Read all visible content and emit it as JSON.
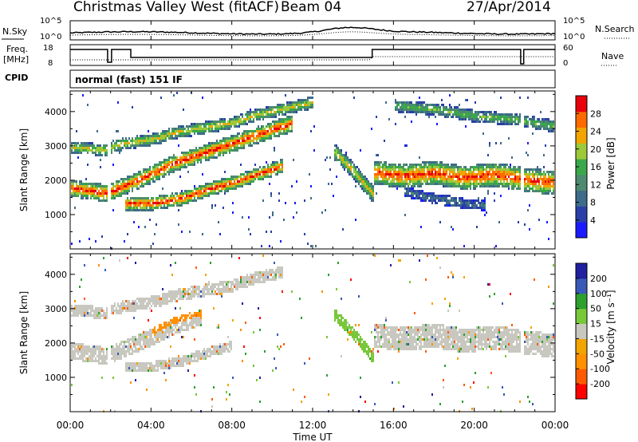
{
  "header": {
    "title": "Christmas Valley West (fitACF)",
    "beam": "Beam 04",
    "date": "27/Apr/2014"
  },
  "top_panels": {
    "nsky_label": "N.Sky",
    "nsearch_label": "N.Search",
    "nsky_ticks": [
      "10^5",
      "10^0"
    ],
    "freq_label_1": "Freq.",
    "freq_label_2": "[MHz]",
    "freq_ticks": [
      "18",
      "8"
    ],
    "nave_label": "Nave",
    "nave_ticks": [
      "60",
      "0"
    ],
    "cpid_label": "CPID",
    "cpid_text": "normal (fast) 151 IF"
  },
  "x_axis": {
    "label": "Time UT",
    "ticks": [
      "00:00",
      "04:00",
      "08:00",
      "12:00",
      "16:00",
      "20:00",
      "00:00"
    ]
  },
  "colors": {
    "power": [
      "#1a1aff",
      "#2a3fa8",
      "#3d6b8a",
      "#4d8a70",
      "#3aa84a",
      "#9cc93a",
      "#f2a400",
      "#ff6a00",
      "#e8000b"
    ],
    "velocity": [
      "#ff0000",
      "#ff5a00",
      "#ff9000",
      "#f2a400",
      "#c8c8c0",
      "#78c83a",
      "#2ea02e",
      "#3a5ab8",
      "#2020a0"
    ]
  },
  "chart_data": [
    {
      "type": "heatmap",
      "quantity": "Power",
      "ylabel": "Slant Range [km]",
      "xlabel": "Time UT",
      "colorbar_label": "Power [dB]",
      "colorbar_ticks": [
        "4",
        "8",
        "12",
        "16",
        "20",
        "24",
        "28"
      ],
      "ylim": [
        0,
        4600
      ],
      "y_ticks": [
        "1000",
        "2000",
        "3000",
        "4000"
      ],
      "x_range_hours": [
        0,
        24
      ],
      "bands": [
        {
          "t": [
            0,
            1.8,
            2.2,
            4.3,
            5.0,
            6.5,
            8.0,
            9.0,
            10.5,
            12.0
          ],
          "r_center": [
            3000,
            2900,
            3050,
            3250,
            3400,
            3550,
            3700,
            3900,
            4100,
            4300
          ],
          "width": 350,
          "peak_dB": 20
        },
        {
          "t": [
            0,
            1.8,
            2.2,
            4.0,
            5.0,
            6.5,
            8.0,
            9.5,
            11.0
          ],
          "r_center": [
            1800,
            1650,
            1750,
            2200,
            2500,
            2800,
            3100,
            3400,
            3700
          ],
          "width": 500,
          "peak_dB": 28
        },
        {
          "t": [
            2.7,
            4.0,
            5.5,
            7.0,
            8.0,
            9.0,
            10.5
          ],
          "r_center": [
            1350,
            1350,
            1500,
            1800,
            1950,
            2150,
            2450
          ],
          "width": 400,
          "peak_dB": 28
        },
        {
          "t": [
            13.0,
            14.0,
            15.0
          ],
          "r_center": [
            2900,
            2300,
            1600
          ],
          "width": 500,
          "peak_dB": 20
        },
        {
          "t": [
            15.0,
            16.5,
            18.0,
            19.5,
            21.0,
            22.5,
            24.0
          ],
          "r_center": [
            2250,
            2150,
            2250,
            2100,
            2200,
            2050,
            1950
          ],
          "width": 700,
          "peak_dB": 28
        },
        {
          "t": [
            16.5,
            18.0,
            19.5,
            20.5
          ],
          "r_center": [
            1700,
            1500,
            1350,
            1300
          ],
          "width": 300,
          "peak_dB": 8
        },
        {
          "t": [
            16.0,
            18.0,
            20.0,
            22.0,
            24.0
          ],
          "r_center": [
            4200,
            4100,
            3900,
            3800,
            3600
          ],
          "width": 350,
          "peak_dB": 16
        }
      ]
    },
    {
      "type": "heatmap",
      "quantity": "Velocity",
      "ylabel": "Slant Range [km]",
      "xlabel": "Time UT",
      "colorbar_label": "Velocity [m s⁻¹]",
      "colorbar_ticks": [
        "-200",
        "-100",
        "-50",
        "-15",
        "15",
        "50",
        "100",
        "200"
      ],
      "ylim": [
        0,
        4600
      ],
      "y_ticks": [
        "1000",
        "2000",
        "3000",
        "4000"
      ],
      "x_range_hours": [
        0,
        24
      ],
      "bands": [
        {
          "t": [
            0,
            1.8,
            2.2,
            4.3,
            5.0,
            6.5,
            8.0,
            9.0,
            10.5
          ],
          "r_center": [
            3000,
            2900,
            3050,
            3250,
            3400,
            3550,
            3700,
            3900,
            4100
          ],
          "width": 350,
          "velocity": 0
        },
        {
          "t": [
            0,
            1.8,
            2.2,
            4.0,
            5.0,
            6.5
          ],
          "r_center": [
            1800,
            1650,
            1750,
            2200,
            2500,
            2800
          ],
          "width": 500,
          "velocity": 0
        },
        {
          "t": [
            2.7,
            4.0,
            5.5,
            7.0,
            8.0
          ],
          "r_center": [
            1350,
            1350,
            1500,
            1800,
            1950
          ],
          "width": 300,
          "velocity": 0
        },
        {
          "t": [
            4.0,
            5.0,
            6.5
          ],
          "r_center": [
            2300,
            2600,
            2900
          ],
          "width": 300,
          "velocity": -40
        },
        {
          "t": [
            13.0,
            14.0,
            15.0
          ],
          "r_center": [
            2900,
            2300,
            1600
          ],
          "width": 350,
          "velocity": 40
        },
        {
          "t": [
            15.0,
            16.5,
            18.0,
            19.5,
            21.0,
            22.5,
            24.0
          ],
          "r_center": [
            2250,
            2150,
            2250,
            2100,
            2200,
            2050,
            1950
          ],
          "width": 700,
          "velocity": 0
        }
      ]
    }
  ]
}
